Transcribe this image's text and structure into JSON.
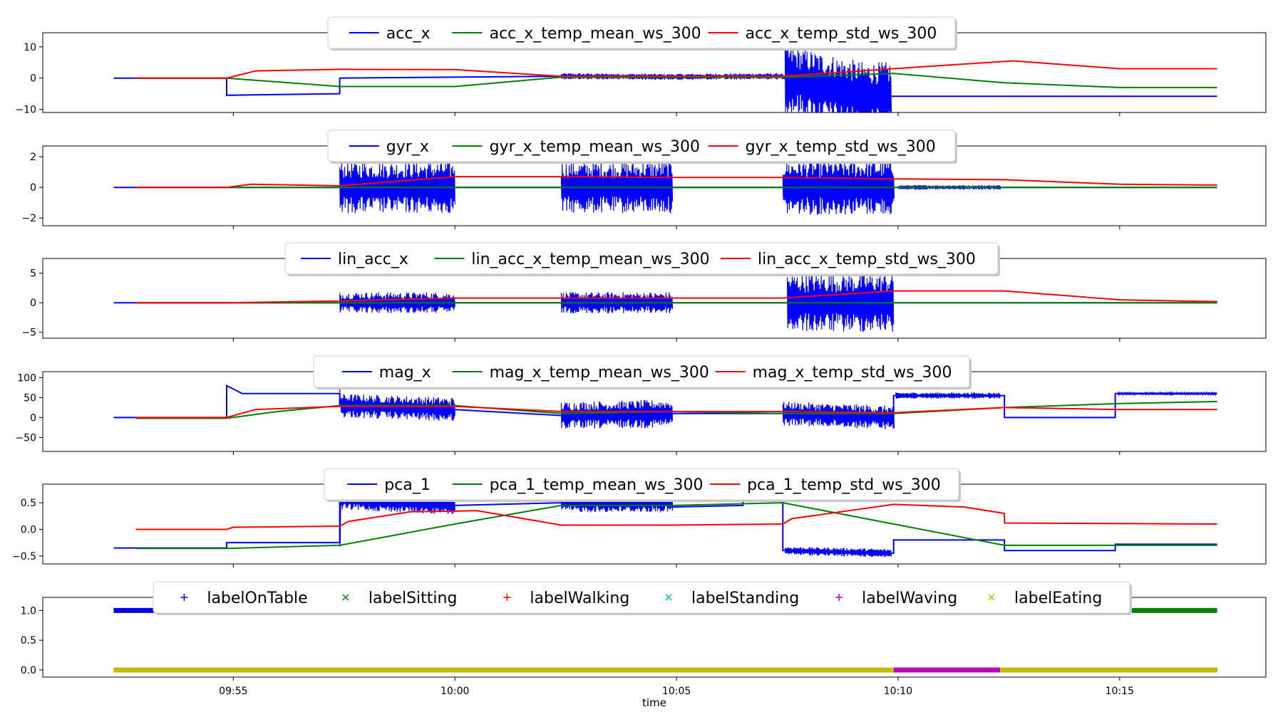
{
  "figure": {
    "xlabel": "time",
    "x_ticks": [
      "09:55",
      "10:00",
      "10:05",
      "10:10",
      "10:15"
    ]
  },
  "colors": {
    "blue": "#0000ff",
    "green": "#008000",
    "red": "#ff0000",
    "cyan": "#00bfbf",
    "magenta": "#bf00bf",
    "olive": "#bfbf00"
  },
  "chart_data": [
    {
      "type": "line",
      "title": "",
      "xlabel": "",
      "ylabel": "",
      "x_unit": "minutes after 09:55",
      "xlim": [
        -4.3,
        23.3
      ],
      "ylim": [
        -11,
        14.5
      ],
      "yticks": [
        10,
        0,
        -10
      ],
      "legend_position": "top-center",
      "series": [
        {
          "name": "acc_x",
          "color": "#0000ff",
          "style": "line",
          "points": [
            [
              -2.7,
              0
            ],
            [
              -0.15,
              0
            ],
            [
              -0.15,
              -5.5
            ],
            [
              2.4,
              -5
            ],
            [
              2.4,
              0
            ],
            [
              7.4,
              0.6
            ],
            [
              9.9,
              0.4
            ],
            [
              12.4,
              0.6
            ],
            [
              12.4,
              0
            ],
            [
              14.2,
              -5.8
            ],
            [
              16.3,
              -5.8
            ],
            [
              22.2,
              -5.8
            ]
          ],
          "noisy_segments": [
            {
              "x": [
                7.4,
                12.4
              ],
              "amp": 1
            },
            {
              "x": [
                12.45,
                14.85
              ],
              "amp": 11
            }
          ]
        },
        {
          "name": "acc_x_temp_mean_ws_300",
          "color": "#008000",
          "style": "line",
          "points": [
            [
              -2.2,
              0
            ],
            [
              -0.15,
              0
            ],
            [
              2.4,
              -2.7
            ],
            [
              5,
              -2.7
            ],
            [
              7.4,
              0.3
            ],
            [
              12.4,
              0.3
            ],
            [
              14.9,
              1.5
            ],
            [
              17.4,
              -1.5
            ],
            [
              20,
              -3
            ],
            [
              22.2,
              -3
            ]
          ]
        },
        {
          "name": "acc_x_temp_std_ws_300",
          "color": "#ff0000",
          "style": "line",
          "points": [
            [
              -2.2,
              0
            ],
            [
              -0.15,
              0
            ],
            [
              0.5,
              2.3
            ],
            [
              2.4,
              2.8
            ],
            [
              5,
              2.7
            ],
            [
              7.4,
              0.6
            ],
            [
              9.9,
              0.6
            ],
            [
              12.4,
              0.6
            ],
            [
              14.9,
              3
            ],
            [
              17.6,
              5.5
            ],
            [
              20,
              3
            ],
            [
              22.2,
              3
            ]
          ]
        }
      ]
    },
    {
      "type": "line",
      "title": "",
      "xlabel": "",
      "ylabel": "",
      "x_unit": "minutes after 09:55",
      "xlim": [
        -4.3,
        23.3
      ],
      "ylim": [
        -2.5,
        2.7
      ],
      "yticks": [
        2,
        0,
        -2
      ],
      "legend_position": "top-center",
      "series": [
        {
          "name": "gyr_x",
          "color": "#0000ff",
          "style": "line",
          "points": [
            [
              -2.7,
              0
            ],
            [
              22.2,
              0
            ]
          ],
          "noisy_segments": [
            {
              "x": [
                2.4,
                5
              ],
              "amp": 1.7
            },
            {
              "x": [
                7.4,
                9.9
              ],
              "amp": 1.7
            },
            {
              "x": [
                12.4,
                14.9
              ],
              "amp": 1.8
            },
            {
              "x": [
                15,
                17.3
              ],
              "amp": 0.15
            }
          ]
        },
        {
          "name": "gyr_x_temp_mean_ws_300",
          "color": "#008000",
          "style": "line",
          "points": [
            [
              -2.2,
              0
            ],
            [
              22.2,
              0
            ]
          ]
        },
        {
          "name": "gyr_x_temp_std_ws_300",
          "color": "#ff0000",
          "style": "line",
          "points": [
            [
              -2.2,
              0
            ],
            [
              -0.15,
              0
            ],
            [
              0.4,
              0.2
            ],
            [
              2.4,
              0.1
            ],
            [
              5,
              0.7
            ],
            [
              7.4,
              0.7
            ],
            [
              9.9,
              0.65
            ],
            [
              12.4,
              0.65
            ],
            [
              14.9,
              0.55
            ],
            [
              17.4,
              0.5
            ],
            [
              20,
              0.2
            ],
            [
              22.2,
              0.15
            ]
          ]
        }
      ]
    },
    {
      "type": "line",
      "title": "",
      "xlabel": "",
      "ylabel": "",
      "x_unit": "minutes after 09:55",
      "xlim": [
        -4.3,
        23.3
      ],
      "ylim": [
        -6,
        7.5
      ],
      "yticks": [
        5,
        0,
        -5
      ],
      "legend_position": "top-center",
      "series": [
        {
          "name": "lin_acc_x",
          "color": "#0000ff",
          "style": "line",
          "points": [
            [
              -2.7,
              0
            ],
            [
              22.2,
              0
            ]
          ],
          "noisy_segments": [
            {
              "x": [
                2.4,
                5
              ],
              "amp": 1.8
            },
            {
              "x": [
                7.4,
                9.9
              ],
              "amp": 1.8
            },
            {
              "x": [
                12.5,
                14.9
              ],
              "amp": 5
            }
          ]
        },
        {
          "name": "lin_acc_x_temp_mean_ws_300",
          "color": "#008000",
          "style": "line",
          "points": [
            [
              -2.2,
              0
            ],
            [
              22.2,
              0
            ]
          ]
        },
        {
          "name": "lin_acc_x_temp_std_ws_300",
          "color": "#ff0000",
          "style": "line",
          "points": [
            [
              -2.2,
              0
            ],
            [
              -0.15,
              0
            ],
            [
              2.4,
              0.3
            ],
            [
              5,
              0.8
            ],
            [
              7.4,
              0.8
            ],
            [
              9.9,
              0.8
            ],
            [
              12.4,
              0.8
            ],
            [
              14.9,
              2
            ],
            [
              17.4,
              2
            ],
            [
              20,
              0.5
            ],
            [
              22.2,
              0.2
            ]
          ]
        }
      ]
    },
    {
      "type": "line",
      "title": "",
      "xlabel": "",
      "ylabel": "",
      "x_unit": "minutes after 09:55",
      "xlim": [
        -4.3,
        23.3
      ],
      "ylim": [
        -85,
        115
      ],
      "yticks": [
        100,
        50,
        0,
        -50
      ],
      "legend_position": "top-center",
      "series": [
        {
          "name": "mag_x",
          "color": "#0000ff",
          "style": "line",
          "points": [
            [
              -2.7,
              0
            ],
            [
              -0.15,
              0
            ],
            [
              -0.15,
              80
            ],
            [
              0.2,
              60
            ],
            [
              2.4,
              60
            ],
            [
              2.4,
              30
            ],
            [
              5,
              20
            ],
            [
              7.4,
              5
            ],
            [
              9.9,
              10
            ],
            [
              12.4,
              10
            ],
            [
              14.9,
              0
            ],
            [
              14.9,
              55
            ],
            [
              17.4,
              55
            ],
            [
              17.4,
              0
            ],
            [
              19.9,
              0
            ],
            [
              19.9,
              60
            ],
            [
              22.2,
              60
            ]
          ],
          "noisy_segments": [
            {
              "x": [
                2.4,
                5
              ],
              "amp": 30
            },
            {
              "x": [
                7.4,
                9.9
              ],
              "amp": 35
            },
            {
              "x": [
                12.4,
                14.9
              ],
              "amp": 30
            },
            {
              "x": [
                14.95,
                17.3
              ],
              "amp": 8
            },
            {
              "x": [
                19.95,
                22.2
              ],
              "amp": 3
            }
          ]
        },
        {
          "name": "mag_x_temp_mean_ws_300",
          "color": "#008000",
          "style": "line",
          "points": [
            [
              -2.2,
              -2
            ],
            [
              -0.15,
              -2
            ],
            [
              1,
              15
            ],
            [
              2.4,
              30
            ],
            [
              5,
              30
            ],
            [
              7.4,
              10
            ],
            [
              9.9,
              15
            ],
            [
              12.4,
              10
            ],
            [
              14.9,
              10
            ],
            [
              17.4,
              25
            ],
            [
              20,
              35
            ],
            [
              22.2,
              40
            ]
          ]
        },
        {
          "name": "mag_x_temp_std_ws_300",
          "color": "#ff0000",
          "style": "line",
          "points": [
            [
              -2.2,
              0
            ],
            [
              -0.15,
              0
            ],
            [
              0.5,
              20
            ],
            [
              2.4,
              28
            ],
            [
              5,
              28
            ],
            [
              7.4,
              15
            ],
            [
              9.9,
              15
            ],
            [
              12.4,
              15
            ],
            [
              14.9,
              12
            ],
            [
              17.4,
              25
            ],
            [
              20,
              20
            ],
            [
              22.2,
              20
            ]
          ]
        }
      ]
    },
    {
      "type": "line",
      "title": "",
      "xlabel": "",
      "ylabel": "",
      "x_unit": "minutes after 09:55",
      "xlim": [
        -4.3,
        23.3
      ],
      "ylim": [
        -0.65,
        0.85
      ],
      "yticks": [
        0.5,
        0.0,
        -0.5
      ],
      "legend_position": "top-center",
      "series": [
        {
          "name": "pca_1",
          "color": "#0000ff",
          "style": "line",
          "points": [
            [
              -2.7,
              -0.35
            ],
            [
              -0.15,
              -0.35
            ],
            [
              -0.15,
              -0.25
            ],
            [
              2.4,
              -0.25
            ],
            [
              2.4,
              0.55
            ],
            [
              5,
              0.45
            ],
            [
              7.4,
              0.5
            ],
            [
              9.9,
              0.5
            ],
            [
              9.9,
              0.42
            ],
            [
              11.5,
              0.45
            ],
            [
              11.5,
              0.6
            ],
            [
              12.4,
              0.6
            ],
            [
              12.4,
              -0.4
            ],
            [
              14.9,
              -0.45
            ],
            [
              14.9,
              -0.2
            ],
            [
              17.4,
              -0.2
            ],
            [
              17.4,
              -0.4
            ],
            [
              19.9,
              -0.4
            ],
            [
              19.9,
              -0.28
            ],
            [
              22.2,
              -0.28
            ]
          ],
          "noisy_segments": [
            {
              "x": [
                2.4,
                5
              ],
              "amp": 0.18
            },
            {
              "x": [
                7.4,
                9.9
              ],
              "amp": 0.18
            },
            {
              "x": [
                12.45,
                14.85
              ],
              "amp": 0.08
            }
          ]
        },
        {
          "name": "pca_1_temp_mean_ws_300",
          "color": "#008000",
          "style": "line",
          "points": [
            [
              -2.2,
              -0.36
            ],
            [
              -0.15,
              -0.36
            ],
            [
              2.4,
              -0.3
            ],
            [
              5,
              0.1
            ],
            [
              7.4,
              0.45
            ],
            [
              9.9,
              0.45
            ],
            [
              12.4,
              0.5
            ],
            [
              14.9,
              0.1
            ],
            [
              17.4,
              -0.3
            ],
            [
              20,
              -0.3
            ],
            [
              22.2,
              -0.3
            ]
          ]
        },
        {
          "name": "pca_1_temp_std_ws_300",
          "color": "#ff0000",
          "style": "line",
          "points": [
            [
              -2.2,
              0
            ],
            [
              -0.15,
              0
            ],
            [
              0,
              0.04
            ],
            [
              2.4,
              0.06
            ],
            [
              2.6,
              0.15
            ],
            [
              4,
              0.33
            ],
            [
              5.5,
              0.35
            ],
            [
              7.4,
              0.08
            ],
            [
              9.9,
              0.08
            ],
            [
              12.4,
              0.1
            ],
            [
              12.6,
              0.2
            ],
            [
              14.9,
              0.47
            ],
            [
              16.5,
              0.42
            ],
            [
              17.4,
              0.3
            ],
            [
              17.4,
              0.12
            ],
            [
              22.2,
              0.1
            ]
          ]
        }
      ]
    },
    {
      "type": "scatter",
      "title": "",
      "xlabel": "time",
      "ylabel": "",
      "x_unit": "minutes after 09:55",
      "xlim": [
        -4.3,
        23.3
      ],
      "ylim": [
        -0.12,
        1.22
      ],
      "yticks": [
        1.0,
        0.5,
        0.0
      ],
      "legend_position": "top-center",
      "series": [
        {
          "name": "labelOnTable",
          "color": "#0000ff",
          "marker": "+",
          "segments": [
            {
              "x": [
                -2.7,
                2.4
              ],
              "y": 1
            },
            {
              "x": [
                2.4,
                14.9
              ],
              "y": 0
            },
            {
              "x": [
                14.9,
                22.2
              ],
              "y": 0
            }
          ]
        },
        {
          "name": "labelSitting",
          "color": "#008000",
          "marker": "x",
          "segments": [
            {
              "x": [
                -2.7,
                19.9
              ],
              "y": 0
            },
            {
              "x": [
                19.9,
                22.2
              ],
              "y": 1
            }
          ]
        },
        {
          "name": "labelWalking",
          "color": "#ff0000",
          "marker": "+",
          "segments": [
            {
              "x": [
                -2.7,
                22.2
              ],
              "y": 0
            }
          ]
        },
        {
          "name": "labelStanding",
          "color": "#00bfbf",
          "marker": "x",
          "segments": [
            {
              "x": [
                -2.7,
                22.2
              ],
              "y": 0
            }
          ]
        },
        {
          "name": "labelWaving",
          "color": "#bf00bf",
          "marker": "+",
          "segments": [
            {
              "x": [
                14.9,
                17.3
              ],
              "y": 0
            }
          ]
        },
        {
          "name": "labelEating",
          "color": "#bfbf00",
          "marker": "x",
          "segments": [
            {
              "x": [
                -2.7,
                14.9
              ],
              "y": 0
            },
            {
              "x": [
                17.3,
                22.2
              ],
              "y": 0
            }
          ]
        }
      ]
    }
  ]
}
